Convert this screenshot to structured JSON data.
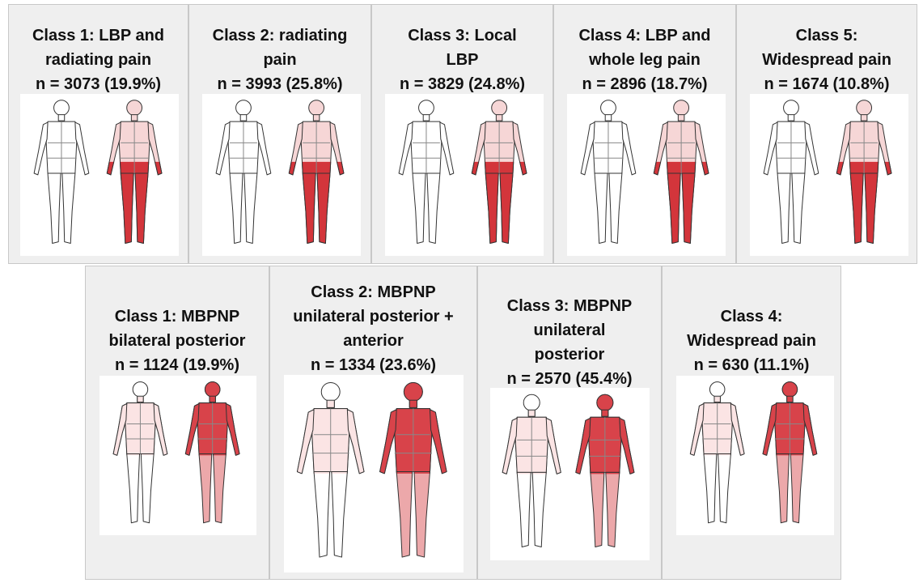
{
  "top_panels": [
    {
      "title_lines": [
        "Class 1: LBP and",
        "radiating pain",
        "n = 3073 (19.9%)"
      ]
    },
    {
      "title_lines": [
        "Class 2: radiating",
        "pain",
        "n = 3993 (25.8%)"
      ]
    },
    {
      "title_lines": [
        "Class 3: Local",
        "LBP",
        "n = 3829 (24.8%)"
      ]
    },
    {
      "title_lines": [
        "Class 4: LBP and",
        "whole leg pain",
        "n = 2896 (18.7%)"
      ]
    },
    {
      "title_lines": [
        "Class 5:",
        "Widespread pain",
        "n = 1674 (10.8%)"
      ]
    }
  ],
  "bottom_panels": [
    {
      "title_lines": [
        "Class 1: MBPNP",
        "bilateral posterior",
        "n = 1124 (19.9%)"
      ]
    },
    {
      "title_lines": [
        "Class 2: MBPNP",
        "unilateral posterior +",
        "anterior",
        "n = 1334 (23.6%)"
      ]
    },
    {
      "title_lines": [
        "Class 3: MBPNP",
        "unilateral",
        "posterior",
        "n = 2570 (45.4%)"
      ]
    },
    {
      "title_lines": [
        "Class 4:",
        "Widespread pain",
        "n = 630 (11.1%)"
      ]
    }
  ]
}
